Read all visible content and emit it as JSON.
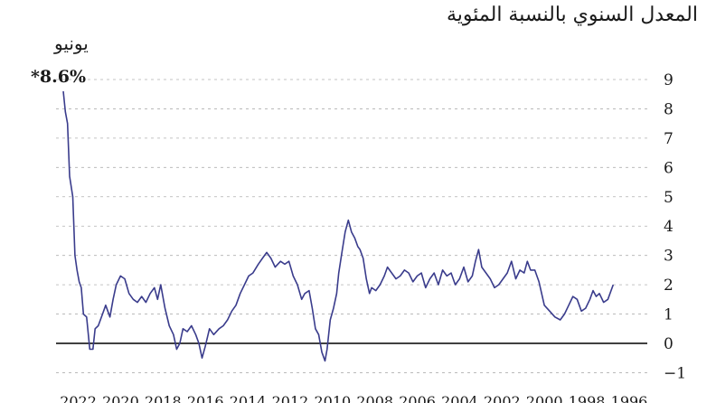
{
  "chart_data": {
    "type": "line",
    "title": "المعدل السنوي بالنسبة المئوية",
    "xlabel": "",
    "ylabel": "",
    "direction": "rtl",
    "xlim": [
      1996.0,
      2022.45
    ],
    "ylim": [
      -1,
      9
    ],
    "yticks": [
      "9",
      "8",
      "7",
      "6",
      "5",
      "4",
      "3",
      "2",
      "1",
      "0",
      "−1"
    ],
    "xticks": [
      "1996",
      "1998",
      "2000",
      "2002",
      "2004",
      "2006",
      "2008",
      "2010",
      "2012",
      "2014",
      "2016",
      "2018",
      "2020",
      "2022"
    ],
    "grid": "horizontal-dashed",
    "annotation": {
      "month": "يونيو",
      "value": "*8.6%"
    },
    "colors": {
      "line": "#3a3c8c",
      "zero_line": "#000000",
      "grid": "#b0b0b0",
      "text": "#1a1a1a"
    },
    "series": [
      {
        "points": [
          [
            1996.5,
            2.0
          ],
          [
            1996.75,
            1.5
          ],
          [
            1996.95,
            1.4
          ],
          [
            1997.15,
            1.7
          ],
          [
            1997.3,
            1.6
          ],
          [
            1997.45,
            1.8
          ],
          [
            1997.6,
            1.5
          ],
          [
            1997.8,
            1.2
          ],
          [
            1998.0,
            1.1
          ],
          [
            1998.2,
            1.5
          ],
          [
            1998.4,
            1.6
          ],
          [
            1998.6,
            1.3
          ],
          [
            1998.8,
            1.0
          ],
          [
            1999.0,
            0.8
          ],
          [
            1999.25,
            0.9
          ],
          [
            1999.5,
            1.1
          ],
          [
            1999.75,
            1.3
          ],
          [
            2000.0,
            2.1
          ],
          [
            2000.2,
            2.5
          ],
          [
            2000.4,
            2.5
          ],
          [
            2000.55,
            2.8
          ],
          [
            2000.7,
            2.4
          ],
          [
            2000.9,
            2.5
          ],
          [
            2001.1,
            2.2
          ],
          [
            2001.3,
            2.8
          ],
          [
            2001.5,
            2.4
          ],
          [
            2001.7,
            2.2
          ],
          [
            2001.9,
            2.0
          ],
          [
            2002.1,
            1.9
          ],
          [
            2002.3,
            2.2
          ],
          [
            2002.5,
            2.4
          ],
          [
            2002.7,
            2.6
          ],
          [
            2002.85,
            3.2
          ],
          [
            2003.0,
            2.8
          ],
          [
            2003.15,
            2.3
          ],
          [
            2003.35,
            2.1
          ],
          [
            2003.55,
            2.6
          ],
          [
            2003.75,
            2.2
          ],
          [
            2003.95,
            2.0
          ],
          [
            2004.15,
            2.4
          ],
          [
            2004.35,
            2.3
          ],
          [
            2004.55,
            2.5
          ],
          [
            2004.75,
            2.0
          ],
          [
            2004.95,
            2.4
          ],
          [
            2005.15,
            2.2
          ],
          [
            2005.35,
            1.9
          ],
          [
            2005.55,
            2.4
          ],
          [
            2005.75,
            2.3
          ],
          [
            2005.95,
            2.1
          ],
          [
            2006.15,
            2.4
          ],
          [
            2006.35,
            2.5
          ],
          [
            2006.55,
            2.3
          ],
          [
            2006.75,
            2.2
          ],
          [
            2006.95,
            2.4
          ],
          [
            2007.15,
            2.6
          ],
          [
            2007.3,
            2.3
          ],
          [
            2007.5,
            2.0
          ],
          [
            2007.7,
            1.8
          ],
          [
            2007.9,
            1.9
          ],
          [
            2008.0,
            1.7
          ],
          [
            2008.15,
            2.2
          ],
          [
            2008.3,
            2.9
          ],
          [
            2008.45,
            3.2
          ],
          [
            2008.55,
            3.3
          ],
          [
            2008.7,
            3.6
          ],
          [
            2008.85,
            3.8
          ],
          [
            2009.0,
            4.2
          ],
          [
            2009.15,
            3.8
          ],
          [
            2009.3,
            3.1
          ],
          [
            2009.45,
            2.4
          ],
          [
            2009.55,
            1.7
          ],
          [
            2009.7,
            1.2
          ],
          [
            2009.85,
            0.8
          ],
          [
            2010.0,
            -0.2
          ],
          [
            2010.1,
            -0.6
          ],
          [
            2010.25,
            -0.3
          ],
          [
            2010.4,
            0.3
          ],
          [
            2010.55,
            0.5
          ],
          [
            2010.7,
            1.2
          ],
          [
            2010.85,
            1.8
          ],
          [
            2011.05,
            1.7
          ],
          [
            2011.2,
            1.5
          ],
          [
            2011.4,
            2.0
          ],
          [
            2011.6,
            2.3
          ],
          [
            2011.8,
            2.8
          ],
          [
            2012.0,
            2.7
          ],
          [
            2012.2,
            2.8
          ],
          [
            2012.45,
            2.6
          ],
          [
            2012.65,
            2.9
          ],
          [
            2012.85,
            3.1
          ],
          [
            2013.05,
            2.9
          ],
          [
            2013.25,
            2.7
          ],
          [
            2013.5,
            2.4
          ],
          [
            2013.7,
            2.3
          ],
          [
            2013.9,
            2.0
          ],
          [
            2014.1,
            1.7
          ],
          [
            2014.3,
            1.3
          ],
          [
            2014.5,
            1.1
          ],
          [
            2014.7,
            0.8
          ],
          [
            2014.9,
            0.6
          ],
          [
            2015.1,
            0.5
          ],
          [
            2015.35,
            0.3
          ],
          [
            2015.55,
            0.5
          ],
          [
            2015.75,
            -0.1
          ],
          [
            2015.9,
            -0.5
          ],
          [
            2016.05,
            0.0
          ],
          [
            2016.2,
            0.3
          ],
          [
            2016.4,
            0.6
          ],
          [
            2016.6,
            0.4
          ],
          [
            2016.8,
            0.5
          ],
          [
            2016.95,
            0.0
          ],
          [
            2017.1,
            -0.2
          ],
          [
            2017.25,
            0.3
          ],
          [
            2017.45,
            0.6
          ],
          [
            2017.65,
            1.2
          ],
          [
            2017.85,
            2.0
          ],
          [
            2018.0,
            1.5
          ],
          [
            2018.15,
            1.9
          ],
          [
            2018.35,
            1.7
          ],
          [
            2018.55,
            1.4
          ],
          [
            2018.75,
            1.6
          ],
          [
            2018.95,
            1.4
          ],
          [
            2019.15,
            1.5
          ],
          [
            2019.35,
            1.7
          ],
          [
            2019.55,
            2.2
          ],
          [
            2019.75,
            2.3
          ],
          [
            2019.95,
            2.0
          ],
          [
            2020.1,
            1.5
          ],
          [
            2020.25,
            0.9
          ],
          [
            2020.45,
            1.3
          ],
          [
            2020.6,
            1.0
          ],
          [
            2020.8,
            0.6
          ],
          [
            2020.95,
            0.5
          ],
          [
            2021.05,
            -0.2
          ],
          [
            2021.2,
            -0.2
          ],
          [
            2021.35,
            0.9
          ],
          [
            2021.5,
            1.0
          ],
          [
            2021.6,
            1.9
          ],
          [
            2021.7,
            2.1
          ],
          [
            2021.8,
            2.5
          ],
          [
            2021.9,
            3.0
          ],
          [
            2022.0,
            5.0
          ],
          [
            2022.15,
            5.7
          ],
          [
            2022.25,
            7.5
          ],
          [
            2022.35,
            7.9
          ],
          [
            2022.45,
            8.6
          ]
        ]
      }
    ]
  }
}
